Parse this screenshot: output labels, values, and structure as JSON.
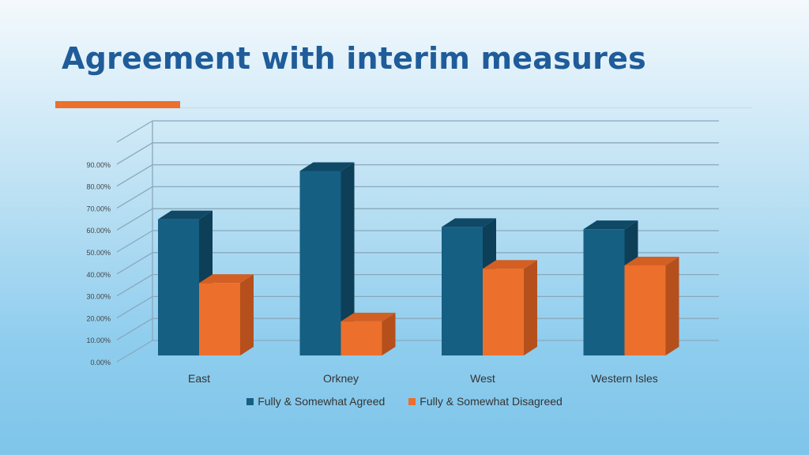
{
  "slide": {
    "title": "Agreement with interim measures"
  },
  "colors": {
    "agreed": "#155f83",
    "agreed_side": "#0d3f58",
    "agreed_top": "#0f4966",
    "disagreed": "#ec6f2c",
    "disagreed_side": "#b5501c",
    "disagreed_top": "#d45f22",
    "accent": "#ec6f2c",
    "title": "#1f5c99"
  },
  "chart_data": {
    "type": "bar",
    "categories": [
      "East",
      "Orkney",
      "West",
      "Western Isles"
    ],
    "series": [
      {
        "name": "Fully & Somewhat Agreed",
        "values": [
          0.62,
          0.84,
          0.585,
          0.575
        ]
      },
      {
        "name": "Fully & Somewhat Disagreed",
        "values": [
          0.33,
          0.155,
          0.395,
          0.41
        ]
      }
    ],
    "yticks": [
      "0.00%",
      "10.00%",
      "20.00%",
      "30.00%",
      "40.00%",
      "50.00%",
      "60.00%",
      "70.00%",
      "80.00%",
      "90.00%"
    ],
    "ylim": [
      0,
      1.0
    ],
    "grid": true,
    "legend": "bottom",
    "style": "3d-clustered-column"
  }
}
